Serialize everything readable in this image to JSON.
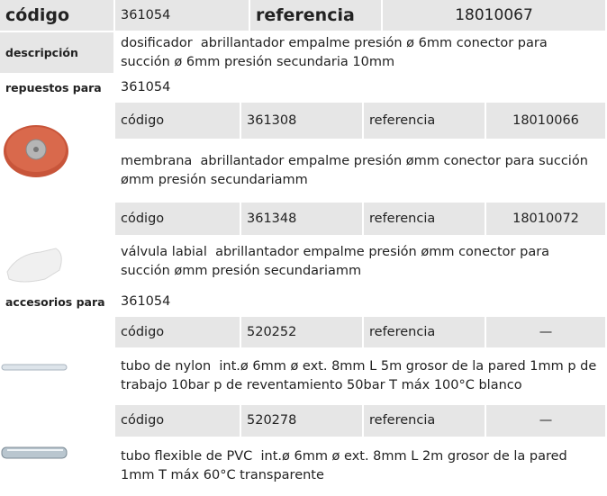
{
  "header": {
    "codigo_label": "código",
    "codigo": "361054",
    "referencia_label": "referencia",
    "referencia": "18010067"
  },
  "descripcion": {
    "label": "descripción",
    "text": "dosificador  abrillantador empalme presión ø 6mm conector para succión ø 6mm presión secundaria 10mm"
  },
  "repuestos": {
    "label": "repuestos para",
    "code": "361054",
    "items": [
      {
        "codigo_label": "código",
        "codigo": "361308",
        "referencia_label": "referencia",
        "referencia": "18010066",
        "description": "membrana  abrillantador empalme presión ømm conector para succión ømm presión secundariamm"
      },
      {
        "codigo_label": "código",
        "codigo": "361348",
        "referencia_label": "referencia",
        "referencia": "18010072",
        "description": "válvula labial  abrillantador empalme presión ømm conector para succión ømm presión secundariamm"
      }
    ]
  },
  "accesorios": {
    "label": "accesorios para",
    "code": "361054",
    "items": [
      {
        "codigo_label": "código",
        "codigo": "520252",
        "referencia_label": "referencia",
        "referencia": "—",
        "description": "tubo de nylon  int.ø 6mm ø ext. 8mm L 5m grosor de la pared 1mm p de trabajo 10bar p de reventamiento 50bar T máx 100°C blanco"
      },
      {
        "codigo_label": "código",
        "codigo": "520278",
        "referencia_label": "referencia",
        "referencia": "—",
        "description": "tubo flexible de PVC  int.ø 6mm ø ext. 8mm L 2m grosor de la pared 1mm T máx 60°C transparente"
      }
    ]
  }
}
